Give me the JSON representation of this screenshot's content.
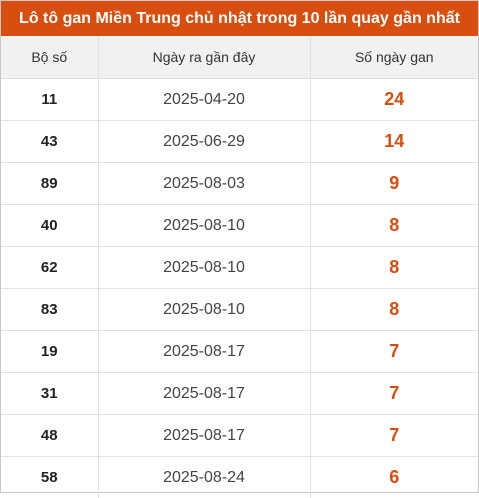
{
  "title": "Lô tô gan Miền Trung chủ nhật trong 10 lần quay gần nhất",
  "headers": {
    "number": "Bộ số",
    "last_date": "Ngày ra gần đây",
    "days": "Số ngày gan"
  },
  "colors": {
    "accent": "#d84e0e",
    "header_bg": "#f1f1f1"
  },
  "rows": [
    {
      "number": "11",
      "last_date": "2025-04-20",
      "days": "24"
    },
    {
      "number": "43",
      "last_date": "2025-06-29",
      "days": "14"
    },
    {
      "number": "89",
      "last_date": "2025-08-03",
      "days": "9"
    },
    {
      "number": "40",
      "last_date": "2025-08-10",
      "days": "8"
    },
    {
      "number": "62",
      "last_date": "2025-08-10",
      "days": "8"
    },
    {
      "number": "83",
      "last_date": "2025-08-10",
      "days": "8"
    },
    {
      "number": "19",
      "last_date": "2025-08-17",
      "days": "7"
    },
    {
      "number": "31",
      "last_date": "2025-08-17",
      "days": "7"
    },
    {
      "number": "48",
      "last_date": "2025-08-17",
      "days": "7"
    },
    {
      "number": "58",
      "last_date": "2025-08-24",
      "days": "6"
    }
  ]
}
